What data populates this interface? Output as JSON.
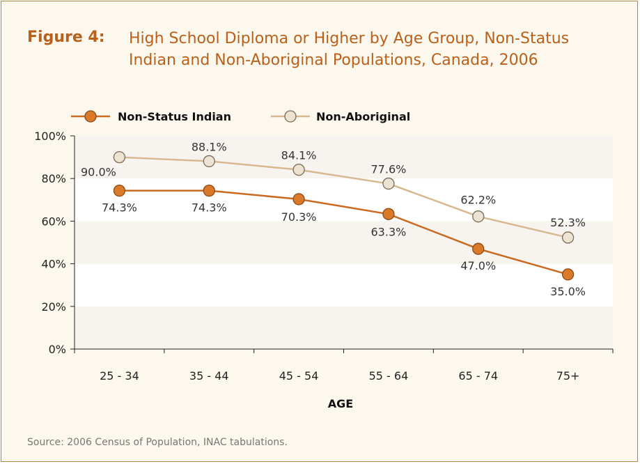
{
  "figure": {
    "label": "Figure 4:",
    "title": "High School Diploma or Higher by Age Group, Non-Status Indian and Non-Aboriginal Populations, Canada, 2006"
  },
  "source": "Source: 2006 Census of Population, INAC tabulations.",
  "colors": {
    "non_status": "#d9792a",
    "non_status_line": "#c96a20",
    "non_aboriginal": "#ece3d2",
    "non_aboriginal_line": "#d8b890",
    "frame": "#b9823a"
  },
  "chart_data": {
    "type": "line",
    "categories": [
      "25 - 34",
      "35 - 44",
      "45 - 54",
      "55 - 64",
      "65 - 74",
      "75+"
    ],
    "xlabel": "AGE",
    "ylabel": "",
    "ylim": [
      0,
      100
    ],
    "yticks": [
      "0%",
      "20%",
      "40%",
      "60%",
      "80%",
      "100%"
    ],
    "legend": "top-left",
    "series": [
      {
        "name": "Non-Status Indian",
        "values": [
          74.3,
          74.3,
          70.3,
          63.3,
          47.0,
          35.0
        ],
        "labels": [
          "74.3%",
          "74.3%",
          "70.3%",
          "63.3%",
          "47.0%",
          "35.0%"
        ]
      },
      {
        "name": "Non-Aboriginal",
        "values": [
          90.0,
          88.1,
          84.1,
          77.6,
          62.2,
          52.3
        ],
        "labels": [
          "90.0%",
          "88.1%",
          "84.1%",
          "77.6%",
          "62.2%",
          "52.3%"
        ]
      }
    ]
  }
}
